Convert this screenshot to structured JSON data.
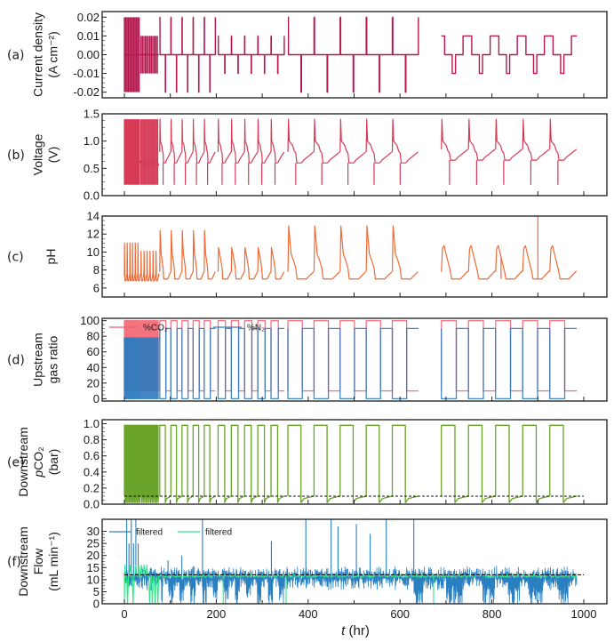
{
  "figure": {
    "xlabel_var": "t",
    "xlabel_unit": " (hr)"
  },
  "chart_data": [
    {
      "id": "a",
      "panel_label": "(a)",
      "type": "line",
      "ylabel_lines": [
        "Current density",
        "(A cm⁻²)"
      ],
      "xlabel": "",
      "xlim": [
        -25,
        1050
      ],
      "ylim": [
        -0.023,
        0.023
      ],
      "yticks": [
        -0.02,
        -0.01,
        0.0,
        0.01,
        0.02
      ],
      "ytick_labels": [
        "-0.02",
        "-0.01",
        "0.00",
        "0.01",
        "0.02"
      ],
      "xticks": [
        0,
        100,
        200,
        300,
        400,
        500,
        600,
        700,
        800,
        900,
        1000
      ],
      "series": [
        {
          "name": "current density",
          "color": "#b5174f",
          "segments": [
            {
              "start": 0,
              "end": 35,
              "cycles": 6,
              "high": 0.02,
              "low": -0.02,
              "shape": "spike"
            },
            {
              "start": 36,
              "end": 75,
              "cycles": 6,
              "high": 0.01,
              "low": -0.01,
              "shape": "spike"
            },
            {
              "start": 77,
              "end": 198,
              "cycles": 5,
              "high": 0.02,
              "low": -0.02,
              "shape": "pulse"
            },
            {
              "start": 204,
              "end": 348,
              "cycles": 5,
              "high": 0.01,
              "low": -0.01,
              "shape": "pulse"
            },
            {
              "start": 356,
              "end": 640,
              "cycles": 5,
              "high": 0.02,
              "low": -0.02,
              "shape": "pulse"
            },
            {
              "start": 690,
              "end": 985,
              "cycles": 5,
              "high": 0.01,
              "low": -0.01,
              "shape": "square"
            }
          ]
        }
      ]
    },
    {
      "id": "b",
      "panel_label": "(b)",
      "type": "line",
      "ylabel_lines": [
        "Voltage",
        "(V)"
      ],
      "xlabel": "",
      "xlim": [
        -25,
        1050
      ],
      "ylim": [
        0.0,
        1.5
      ],
      "yticks": [
        0.0,
        0.5,
        1.0,
        1.5
      ],
      "ytick_labels": [
        "0.0",
        "0.5",
        "1.0",
        "1.5"
      ],
      "xticks": [
        0,
        100,
        200,
        300,
        400,
        500,
        600,
        700,
        800,
        900,
        1000
      ],
      "series": [
        {
          "name": "voltage",
          "color": "#d63a55",
          "segments": [
            {
              "start": 0,
              "end": 35,
              "cycles": 8,
              "peak": 1.4,
              "plateau": 0.6,
              "trough": 0.2,
              "shape": "fast"
            },
            {
              "start": 36,
              "end": 75,
              "cycles": 8,
              "peak": 1.4,
              "plateau": 0.55,
              "trough": 0.2,
              "shape": "fast"
            },
            {
              "start": 77,
              "end": 198,
              "cycles": 5,
              "peak": 1.4,
              "plateau": 0.6,
              "trough": 0.2,
              "shape": "slow"
            },
            {
              "start": 204,
              "end": 348,
              "cycles": 5,
              "peak": 1.4,
              "plateau": 0.6,
              "trough": 0.2,
              "shape": "slow"
            },
            {
              "start": 356,
              "end": 640,
              "cycles": 5,
              "peak": 1.4,
              "plateau": 0.6,
              "trough": 0.2,
              "shape": "slow"
            },
            {
              "start": 690,
              "end": 985,
              "cycles": 5,
              "peak": 1.4,
              "plateau": 0.65,
              "trough": 0.2,
              "shape": "slow"
            }
          ]
        }
      ]
    },
    {
      "id": "c",
      "panel_label": "(c)",
      "type": "line",
      "ylabel_lines": [
        "pH"
      ],
      "xlabel": "",
      "xlim": [
        -25,
        1050
      ],
      "ylim": [
        5.0,
        14.0
      ],
      "yticks": [
        6,
        8,
        10,
        12,
        14
      ],
      "ytick_labels": [
        "6",
        "8",
        "10",
        "12",
        "14"
      ],
      "xticks": [
        0,
        100,
        200,
        300,
        400,
        500,
        600,
        700,
        800,
        900,
        1000
      ],
      "series": [
        {
          "name": "pH",
          "color": "#f06a35",
          "segments": [
            {
              "start": 0,
              "end": 35,
              "cycles": 6,
              "peak": 11.0,
              "base": 6.8,
              "shape": "fast"
            },
            {
              "start": 36,
              "end": 75,
              "cycles": 6,
              "peak": 10.1,
              "base": 6.8,
              "shape": "fast"
            },
            {
              "start": 77,
              "end": 198,
              "cycles": 5,
              "peak": 12.4,
              "base": 7.0,
              "shape": "slow"
            },
            {
              "start": 204,
              "end": 348,
              "cycles": 5,
              "peak": 10.5,
              "base": 7.0,
              "shape": "slow"
            },
            {
              "start": 356,
              "end": 640,
              "cycles": 5,
              "peak": 12.9,
              "base": 7.0,
              "shape": "slow"
            },
            {
              "start": 690,
              "end": 985,
              "cycles": 5,
              "peak": 10.7,
              "base": 7.0,
              "shape": "round"
            }
          ],
          "outliers": [
            {
              "x": 900,
              "y": 14.0
            },
            {
              "x": 820,
              "y": 9.5
            }
          ]
        }
      ]
    },
    {
      "id": "d",
      "panel_label": "(d)",
      "type": "line",
      "ylabel_lines": [
        "Upstream",
        "gas ratio"
      ],
      "xlabel": "",
      "xlim": [
        -25,
        1050
      ],
      "ylim": [
        -3,
        103
      ],
      "yticks": [
        0,
        20,
        40,
        60,
        80,
        100
      ],
      "ytick_labels": [
        "0",
        "20",
        "40",
        "60",
        "80",
        "100"
      ],
      "xticks": [
        0,
        100,
        200,
        300,
        400,
        500,
        600,
        700,
        800,
        900,
        1000
      ],
      "legend": {
        "placement": "top-left",
        "entries": [
          "%CO₂",
          "%N₂"
        ]
      },
      "series": [
        {
          "name": "%CO2",
          "color": "#f25a6a",
          "high": 100,
          "low": 10
        },
        {
          "name": "%N2",
          "color": "#2f7bbf",
          "high": 90,
          "low": 0
        }
      ],
      "switch_segments": [
        {
          "start": 0,
          "end": 35,
          "cycles": 12,
          "n2_high": 78
        },
        {
          "start": 36,
          "end": 75,
          "cycles": 12,
          "n2_high": 78
        },
        {
          "start": 77,
          "end": 198,
          "cycles": 5,
          "n2_high": 90
        },
        {
          "start": 204,
          "end": 348,
          "cycles": 5,
          "n2_high": 90
        },
        {
          "start": 356,
          "end": 640,
          "cycles": 5,
          "n2_high": 90
        },
        {
          "start": 690,
          "end": 985,
          "cycles": 5,
          "n2_high": 90
        }
      ]
    },
    {
      "id": "e",
      "panel_label": "(e)",
      "type": "line",
      "ylabel_lines": [
        "Downstream",
        "pCO₂",
        "(bar)"
      ],
      "xlabel": "",
      "xlim": [
        -25,
        1050
      ],
      "ylim": [
        0.0,
        1.05
      ],
      "yticks": [
        0.0,
        0.2,
        0.4,
        0.6,
        0.8,
        1.0
      ],
      "ytick_labels": [
        "0.0",
        "0.2",
        "0.4",
        "0.6",
        "0.8",
        "1.0"
      ],
      "xticks": [
        0,
        100,
        200,
        300,
        400,
        500,
        600,
        700,
        800,
        900,
        1000
      ],
      "reference_line": {
        "y": 0.1,
        "style": "dashed",
        "color": "#111111"
      },
      "series": [
        {
          "name": "pCO2",
          "color": "#6aa329",
          "high": 0.98,
          "low": 0.1
        }
      ],
      "switch_segments": [
        {
          "start": 0,
          "end": 35,
          "cycles": 12
        },
        {
          "start": 36,
          "end": 75,
          "cycles": 12
        },
        {
          "start": 77,
          "end": 198,
          "cycles": 5
        },
        {
          "start": 204,
          "end": 348,
          "cycles": 5
        },
        {
          "start": 356,
          "end": 640,
          "cycles": 5
        },
        {
          "start": 690,
          "end": 985,
          "cycles": 5
        }
      ]
    },
    {
      "id": "f",
      "panel_label": "(f)",
      "type": "line",
      "ylabel_lines": [
        "Downstream",
        "Flow",
        "(mL min⁻¹)"
      ],
      "xlabel": "t (hr)",
      "xlim": [
        -25,
        1050
      ],
      "ylim": [
        0,
        35
      ],
      "yticks": [
        0,
        5,
        10,
        15,
        20,
        25,
        30
      ],
      "ytick_labels": [
        "0",
        "5",
        "10",
        "15",
        "20",
        "25",
        "30"
      ],
      "xticks": [
        0,
        200,
        400,
        600,
        800,
        1000
      ],
      "xtick_labels": [
        "0",
        "200",
        "400",
        "600",
        "800",
        "1000"
      ],
      "minor_xticks": [
        100,
        300,
        500,
        700,
        900
      ],
      "reference_line": {
        "y": 12,
        "style": "dashed",
        "color": "#111111"
      },
      "legend": {
        "placement": "top-left",
        "entries": [
          "filtered",
          "filtered"
        ]
      },
      "series": [
        {
          "name": "filtered (raw)",
          "color": "#2a7fc0",
          "mean": 11.5,
          "noise": 4
        },
        {
          "name": "filtered (smoothed)",
          "color": "#2ee88a",
          "mean": 11.5
        }
      ],
      "spikes": [
        {
          "x": 5,
          "y": 35
        },
        {
          "x": 15,
          "y": 35
        },
        {
          "x": 25,
          "y": 35
        },
        {
          "x": 10,
          "y": 25
        },
        {
          "x": 20,
          "y": 25
        },
        {
          "x": 30,
          "y": 25
        },
        {
          "x": 170,
          "y": 35
        },
        {
          "x": 125,
          "y": 20
        },
        {
          "x": 95,
          "y": 18
        },
        {
          "x": 320,
          "y": 26
        },
        {
          "x": 395,
          "y": 35
        },
        {
          "x": 450,
          "y": 35
        },
        {
          "x": 465,
          "y": 32
        },
        {
          "x": 505,
          "y": 33
        },
        {
          "x": 535,
          "y": 29
        },
        {
          "x": 570,
          "y": 35
        },
        {
          "x": 630,
          "y": 35
        }
      ]
    }
  ]
}
